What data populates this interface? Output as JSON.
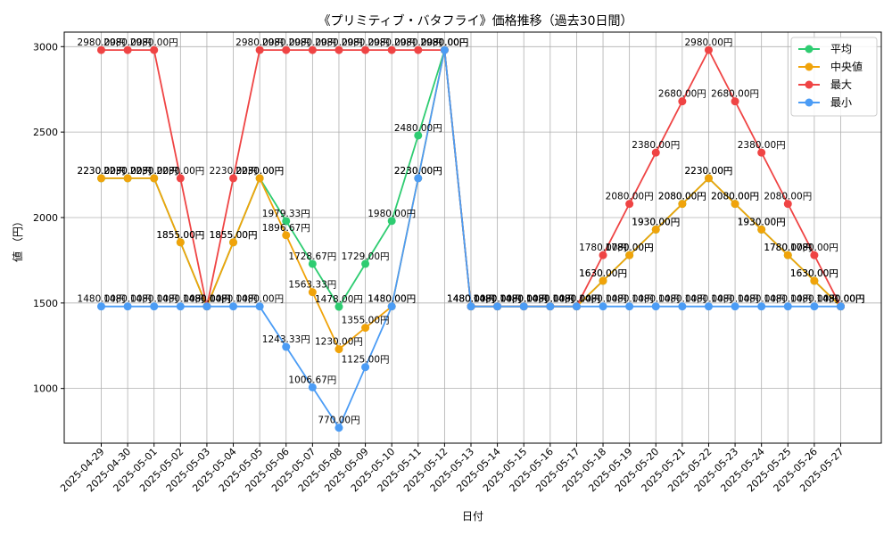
{
  "chart_data": {
    "type": "line",
    "title": "《プリミティブ・バタフライ》価格推移（過去30日間）",
    "xlabel": "日付",
    "ylabel": "値 （円）",
    "x": [
      "2025-04-29",
      "2025-04-30",
      "2025-05-01",
      "2025-05-02",
      "2025-05-03",
      "2025-05-04",
      "2025-05-05",
      "2025-05-06",
      "2025-05-07",
      "2025-05-08",
      "2025-05-09",
      "2025-05-10",
      "2025-05-11",
      "2025-05-12",
      "2025-05-13",
      "2025-05-14",
      "2025-05-15",
      "2025-05-16",
      "2025-05-17",
      "2025-05-18",
      "2025-05-19",
      "2025-05-20",
      "2025-05-21",
      "2025-05-22",
      "2025-05-23",
      "2025-05-24",
      "2025-05-25",
      "2025-05-26",
      "2025-05-27"
    ],
    "ylim": [
      680,
      3085
    ],
    "yticks": [
      1000,
      1500,
      2000,
      2500,
      3000
    ],
    "grid": true,
    "legend_position": "top-right",
    "label_suffix": "円",
    "series": [
      {
        "name": "平均",
        "color": "#2ecc71",
        "values": [
          2230,
          2230,
          2230,
          1855,
          1480,
          1855,
          2230,
          1979.33,
          1728.67,
          1478,
          1729,
          1980,
          2480,
          2980,
          1480,
          1480,
          1480,
          1480,
          1480,
          1630,
          1780,
          1930,
          2080,
          2230,
          2080,
          1930,
          1780,
          1630,
          1480
        ]
      },
      {
        "name": "中央値",
        "color": "#f0a30a",
        "values": [
          2230,
          2230,
          2230,
          1855,
          1480,
          1855,
          2230,
          1896.67,
          1563.33,
          1230,
          1355,
          1480,
          2230,
          2980,
          1480,
          1480,
          1480,
          1480,
          1480,
          1630,
          1780,
          1930,
          2080,
          2230,
          2080,
          1930,
          1780,
          1630,
          1480
        ]
      },
      {
        "name": "最大",
        "color": "#ef4444",
        "values": [
          2980,
          2980,
          2980,
          2230,
          1480,
          2230,
          2980,
          2980,
          2980,
          2980,
          2980,
          2980,
          2980,
          2980,
          1480,
          1480,
          1480,
          1480,
          1480,
          1780,
          2080,
          2380,
          2680,
          2980,
          2680,
          2380,
          2080,
          1780,
          1480
        ]
      },
      {
        "name": "最小",
        "color": "#4b9cf5",
        "values": [
          1480,
          1480,
          1480,
          1480,
          1480,
          1480,
          1480,
          1243.33,
          1006.67,
          770,
          1125,
          1480,
          2230,
          2980,
          1480,
          1480,
          1480,
          1480,
          1480,
          1480,
          1480,
          1480,
          1480,
          1480,
          1480,
          1480,
          1480,
          1480,
          1480
        ]
      }
    ]
  }
}
